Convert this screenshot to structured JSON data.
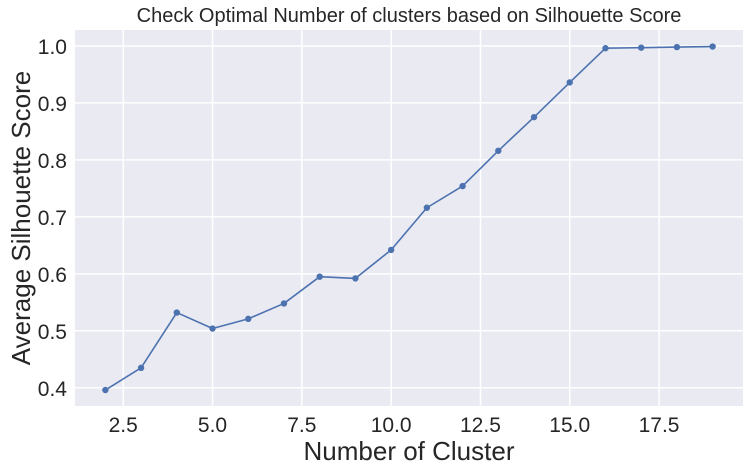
{
  "chart_data": {
    "type": "line",
    "title": "Check Optimal Number of clusters based on Silhouette Score",
    "xlabel": "Number of Cluster",
    "ylabel": "Average Silhouette Score",
    "xlim": [
      1.15,
      19.85
    ],
    "ylim": [
      0.368,
      1.028
    ],
    "xticks": [
      2.5,
      5.0,
      7.5,
      10.0,
      12.5,
      15.0,
      17.5
    ],
    "xtick_labels": [
      "2.5",
      "5.0",
      "7.5",
      "10.0",
      "12.5",
      "15.0",
      "17.5"
    ],
    "yticks": [
      0.4,
      0.5,
      0.6,
      0.7,
      0.8,
      0.9,
      1.0
    ],
    "ytick_labels": [
      "0.4",
      "0.5",
      "0.6",
      "0.7",
      "0.8",
      "0.9",
      "1.0"
    ],
    "grid": true,
    "series": [
      {
        "color": "#4c72b0",
        "x": [
          2,
          3,
          4,
          5,
          6,
          7,
          8,
          9,
          10,
          11,
          12,
          13,
          14,
          15,
          16,
          17,
          18,
          19
        ],
        "y": [
          0.396,
          0.435,
          0.532,
          0.504,
          0.521,
          0.548,
          0.595,
          0.592,
          0.642,
          0.716,
          0.754,
          0.816,
          0.875,
          0.936,
          0.996,
          0.997,
          0.998,
          0.999
        ]
      }
    ],
    "background_color": "#eaeaf2",
    "grid_color": "#ffffff"
  }
}
